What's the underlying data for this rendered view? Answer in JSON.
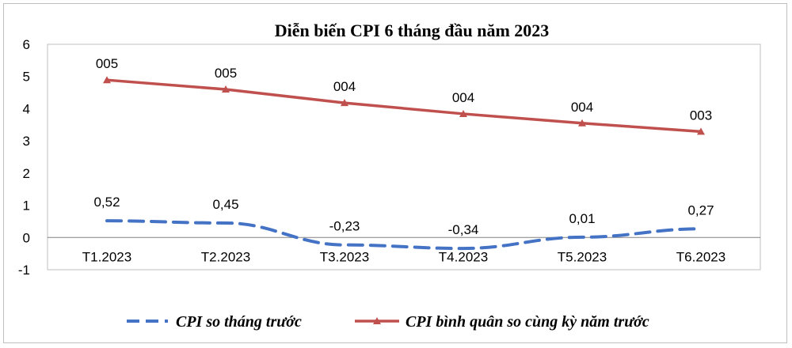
{
  "chart_data": {
    "type": "line",
    "title": "Diễn biến CPI 6 tháng đầu năm 2023",
    "categories": [
      "T1.2023",
      "T2.2023",
      "T3.2023",
      "T4.2023",
      "T5.2023",
      "T6.2023"
    ],
    "ylim": [
      -1,
      6
    ],
    "yticks": [
      "-1",
      "0",
      "1",
      "2",
      "3",
      "4",
      "5",
      "6"
    ],
    "grid": false,
    "legend_position": "bottom",
    "series": [
      {
        "name": "CPI so tháng trước",
        "style": "dashed",
        "color": "#4472C4",
        "values": [
          0.52,
          0.45,
          -0.23,
          -0.34,
          0.01,
          0.27
        ],
        "labels": [
          "0,52",
          "0,45",
          "-0,23",
          "-0,34",
          "0,01",
          "0,27"
        ]
      },
      {
        "name": "CPI bình quân so cùng kỳ năm trước",
        "style": "solid-triangle",
        "color": "#C0504D",
        "values": [
          4.89,
          4.6,
          4.18,
          3.84,
          3.55,
          3.29
        ],
        "labels": [
          "005",
          "005",
          "004",
          "004",
          "004",
          "003"
        ]
      }
    ]
  }
}
